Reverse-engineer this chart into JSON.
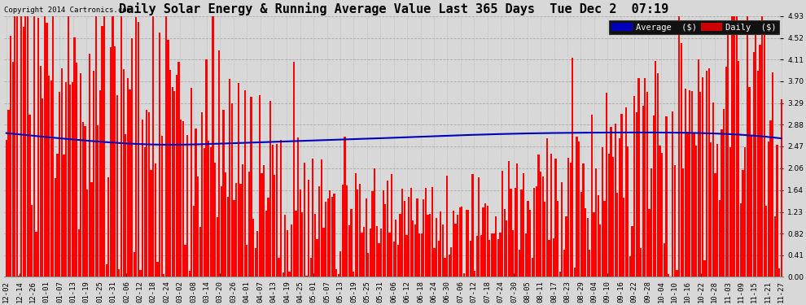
{
  "title": "Daily Solar Energy & Running Average Value Last 365 Days  Tue Dec 2  07:19",
  "copyright": "Copyright 2014 Cartronics.com",
  "ylabel_right": [
    "4.93",
    "4.52",
    "4.11",
    "3.70",
    "3.29",
    "2.88",
    "2.47",
    "2.06",
    "1.64",
    "1.23",
    "0.82",
    "0.41",
    "0.00"
  ],
  "ymax": 4.93,
  "ymin": 0.0,
  "bar_color": "#FF0000",
  "avg_line_color": "#0000BB",
  "background_color": "#D8D8D8",
  "plot_bg_color": "#D8D8D8",
  "legend_avg_color": "#0000BB",
  "legend_daily_color": "#CC0000",
  "title_fontsize": 11,
  "tick_fontsize": 6.5,
  "figsize": [
    9.9,
    3.75
  ],
  "dpi": 100,
  "avg_line": [
    2.72,
    2.68,
    2.63,
    2.58,
    2.54,
    2.51,
    2.5,
    2.5,
    2.51,
    2.52,
    2.53,
    2.54,
    2.55,
    2.56,
    2.57,
    2.58,
    2.59,
    2.6,
    2.61,
    2.62,
    2.63,
    2.64,
    2.65,
    2.65,
    2.66,
    2.67,
    2.67,
    2.68,
    2.68,
    2.69,
    2.69,
    2.7,
    2.7,
    2.7,
    2.71,
    2.71,
    2.71,
    2.71,
    2.72,
    2.72,
    2.72,
    2.72,
    2.72,
    2.72,
    2.72,
    2.72,
    2.72,
    2.72,
    2.72,
    2.72,
    2.72,
    2.72,
    2.72,
    2.72,
    2.72,
    2.72,
    2.72,
    2.72,
    2.72,
    2.65,
    2.62,
    2.6,
    2.6,
    2.6,
    2.6,
    2.6,
    2.6,
    2.6,
    2.6,
    2.6,
    2.6,
    2.6,
    2.61,
    2.62,
    2.63,
    2.64,
    2.65,
    2.66,
    2.67,
    2.68,
    2.69,
    2.7,
    2.71,
    2.72,
    2.73,
    2.73,
    2.73,
    2.73,
    2.73,
    2.73,
    2.73,
    2.73,
    2.73,
    2.73,
    2.73,
    2.73,
    2.73,
    2.73,
    2.73,
    2.73
  ]
}
